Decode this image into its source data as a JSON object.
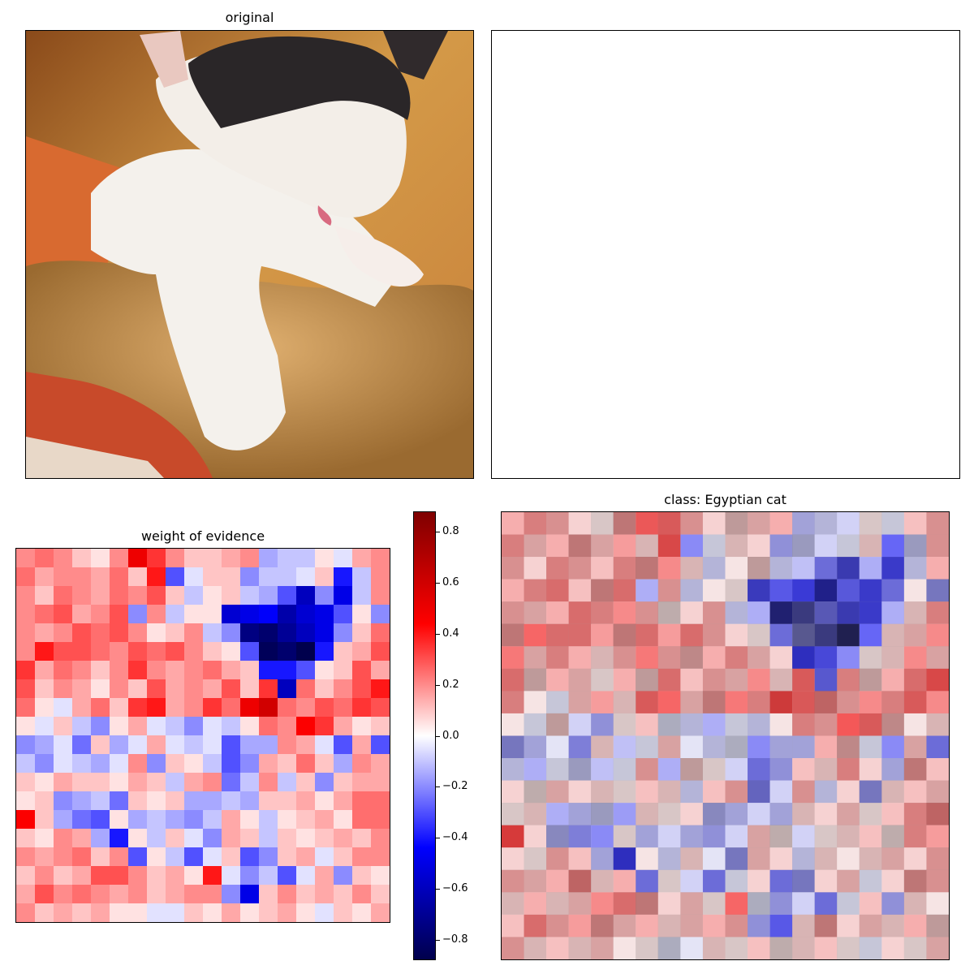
{
  "chart_data": [
    {
      "type": "image",
      "title": "original",
      "description_colors": {
        "background": "#d49a48",
        "fur_white": "#f2efe8",
        "fur_black": "#2a2628",
        "cushion": "#d8602e",
        "teddy": "#c8924a"
      }
    },
    {
      "type": "image",
      "title": ""
    },
    {
      "type": "heatmap",
      "title": "weight of evidence",
      "rows": 20,
      "cols": 20,
      "colormap": "seismic",
      "vmin": -0.88,
      "vmax": 0.88,
      "colorbar_ticks": [
        0.8,
        0.6,
        0.4,
        0.2,
        0.0,
        -0.2,
        -0.4,
        -0.6,
        -0.8
      ],
      "colorbar_tick_labels": [
        "0.8",
        "0.6",
        "0.4",
        "0.2",
        "0.0",
        "−0.2",
        "−0.4",
        "−0.6",
        "−0.8"
      ],
      "grid": [
        [
          0.2,
          0.25,
          0.2,
          0.1,
          0.05,
          0.2,
          0.5,
          0.35,
          0.2,
          0.1,
          0.1,
          0.15,
          0.2,
          -0.15,
          -0.1,
          -0.1,
          0.05,
          -0.05,
          0.15,
          0.2
        ],
        [
          0.25,
          0.15,
          0.2,
          0.2,
          0.15,
          0.25,
          0.1,
          0.4,
          -0.3,
          -0.05,
          0.1,
          0.1,
          -0.2,
          -0.1,
          -0.1,
          -0.05,
          0.1,
          -0.4,
          -0.1,
          0.2
        ],
        [
          0.2,
          0.1,
          0.25,
          0.2,
          0.15,
          0.25,
          0.2,
          0.3,
          0.1,
          -0.1,
          0.05,
          0.1,
          -0.1,
          -0.15,
          -0.3,
          -0.6,
          -0.2,
          -0.5,
          -0.1,
          0.2
        ],
        [
          0.2,
          0.25,
          0.3,
          0.15,
          0.2,
          0.3,
          -0.2,
          0.2,
          -0.1,
          0.05,
          0.05,
          -0.55,
          -0.5,
          -0.45,
          -0.65,
          -0.55,
          -0.5,
          -0.3,
          0.05,
          -0.2
        ],
        [
          0.2,
          0.15,
          0.2,
          0.3,
          0.25,
          0.3,
          0.2,
          0.05,
          0.1,
          0.2,
          -0.1,
          -0.2,
          -0.75,
          -0.8,
          -0.7,
          -0.6,
          -0.5,
          -0.2,
          0.1,
          0.25
        ],
        [
          0.2,
          0.4,
          0.3,
          0.3,
          0.25,
          0.2,
          0.3,
          0.25,
          0.3,
          0.2,
          0.1,
          0.05,
          -0.3,
          -0.85,
          -0.8,
          -0.88,
          -0.4,
          0.1,
          0.15,
          0.3
        ],
        [
          0.35,
          0.15,
          0.25,
          0.2,
          0.1,
          0.2,
          0.35,
          0.2,
          0.15,
          0.2,
          0.25,
          0.15,
          0.1,
          -0.4,
          -0.4,
          -0.3,
          0.05,
          0.1,
          0.3,
          0.15
        ],
        [
          0.3,
          0.1,
          0.2,
          0.15,
          0.05,
          0.2,
          0.1,
          0.3,
          0.15,
          0.2,
          0.15,
          0.3,
          0.1,
          0.35,
          -0.6,
          0.25,
          0.1,
          0.2,
          0.3,
          0.4
        ],
        [
          0.25,
          0.05,
          -0.05,
          0.15,
          0.25,
          0.1,
          0.35,
          0.4,
          0.15,
          0.2,
          0.35,
          0.25,
          0.5,
          0.6,
          0.25,
          0.2,
          0.3,
          0.25,
          0.35,
          0.3
        ],
        [
          0.05,
          -0.05,
          0.1,
          -0.1,
          -0.2,
          0.05,
          0.15,
          -0.05,
          -0.1,
          -0.2,
          -0.05,
          -0.1,
          0.05,
          0.25,
          0.2,
          0.45,
          0.35,
          0.15,
          0.05,
          0.1
        ],
        [
          -0.2,
          -0.15,
          -0.05,
          -0.25,
          0.1,
          -0.15,
          -0.05,
          0.15,
          -0.05,
          -0.1,
          -0.05,
          -0.3,
          -0.15,
          -0.15,
          0.2,
          0.15,
          -0.05,
          -0.3,
          0.15,
          -0.3
        ],
        [
          -0.1,
          -0.2,
          -0.05,
          -0.1,
          -0.15,
          -0.05,
          0.2,
          -0.2,
          0.1,
          0.05,
          -0.1,
          -0.3,
          -0.2,
          0.15,
          0.1,
          0.25,
          0.1,
          -0.15,
          0.2,
          0.15
        ],
        [
          0.1,
          0.05,
          0.15,
          0.1,
          0.1,
          0.05,
          0.15,
          0.1,
          -0.1,
          0.15,
          0.2,
          -0.25,
          -0.1,
          0.2,
          -0.1,
          0.1,
          -0.2,
          0.1,
          0.15,
          0.15
        ],
        [
          0.05,
          0.1,
          -0.2,
          -0.15,
          -0.1,
          -0.25,
          0.1,
          0.05,
          0.1,
          -0.15,
          -0.15,
          -0.1,
          -0.15,
          0.1,
          0.1,
          0.15,
          0.05,
          0.15,
          0.25,
          0.25
        ],
        [
          0.45,
          0.1,
          -0.15,
          -0.25,
          -0.3,
          0.05,
          -0.15,
          -0.1,
          -0.15,
          -0.2,
          -0.1,
          0.15,
          0.05,
          -0.1,
          0.05,
          0.1,
          0.15,
          0.05,
          0.25,
          0.25
        ],
        [
          0.1,
          0.05,
          0.2,
          0.15,
          -0.15,
          -0.4,
          0.05,
          -0.1,
          0.1,
          -0.05,
          -0.2,
          0.15,
          0.1,
          -0.1,
          0.1,
          0.05,
          0.1,
          0.15,
          0.1,
          0.2
        ],
        [
          0.2,
          0.15,
          0.2,
          0.25,
          0.1,
          0.2,
          -0.3,
          0.05,
          -0.1,
          -0.3,
          -0.05,
          0.1,
          -0.3,
          -0.2,
          0.1,
          0.15,
          -0.05,
          0.1,
          0.2,
          0.2
        ],
        [
          0.1,
          0.2,
          0.1,
          0.15,
          0.3,
          0.3,
          0.2,
          0.1,
          0.15,
          0.05,
          0.4,
          -0.05,
          -0.2,
          -0.1,
          -0.3,
          -0.05,
          0.15,
          -0.2,
          0.1,
          0.05
        ],
        [
          0.15,
          0.3,
          0.2,
          0.25,
          0.2,
          0.15,
          0.2,
          0.1,
          0.15,
          0.2,
          0.2,
          -0.2,
          -0.5,
          0.1,
          0.2,
          0.1,
          0.15,
          0.1,
          0.2,
          0.1
        ],
        [
          0.2,
          0.1,
          0.15,
          0.1,
          0.15,
          0.05,
          0.05,
          -0.05,
          -0.05,
          0.1,
          0.05,
          0.15,
          0.05,
          0.1,
          0.15,
          0.05,
          -0.05,
          0.1,
          0.05,
          0.15
        ]
      ]
    },
    {
      "type": "heatmap",
      "title": "class: Egyptian cat",
      "overlay": true,
      "background_colors": {
        "light": "#e8e8e8",
        "mid": "#9a9a9a",
        "dark": "#555555"
      }
    }
  ]
}
